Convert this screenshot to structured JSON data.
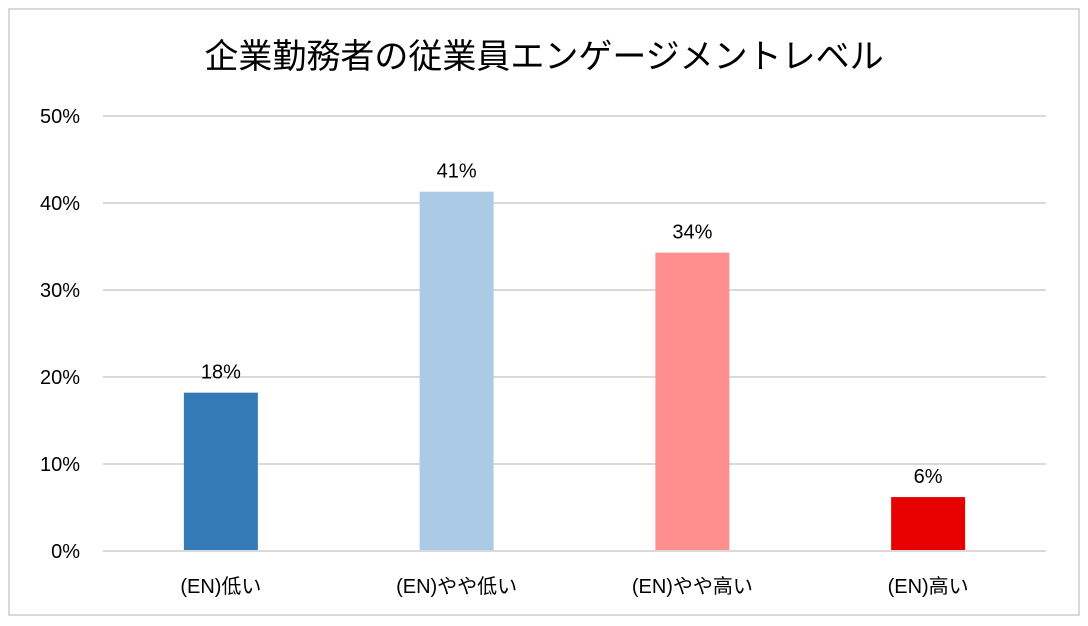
{
  "chart_data": {
    "type": "bar",
    "title": "企業勤務者の従業員エンゲージメントレベル",
    "categories": [
      "(EN)低い",
      "(EN)やや低い",
      "(EN)やや高い",
      "(EN)高い"
    ],
    "values": [
      18.2,
      41.3,
      34.3,
      6.2
    ],
    "data_labels": [
      "18%",
      "41%",
      "34%",
      "6%"
    ],
    "colors": [
      "#337ab7",
      "#abcae6",
      "#ff8f8f",
      "#e60000"
    ],
    "ylim": [
      0,
      50
    ],
    "yticks": [
      0,
      10,
      20,
      30,
      40,
      50
    ],
    "ytick_labels": [
      "0%",
      "10%",
      "20%",
      "30%",
      "40%",
      "50%"
    ],
    "xlabel": "",
    "ylabel": "",
    "grid": true,
    "legend": "none"
  }
}
